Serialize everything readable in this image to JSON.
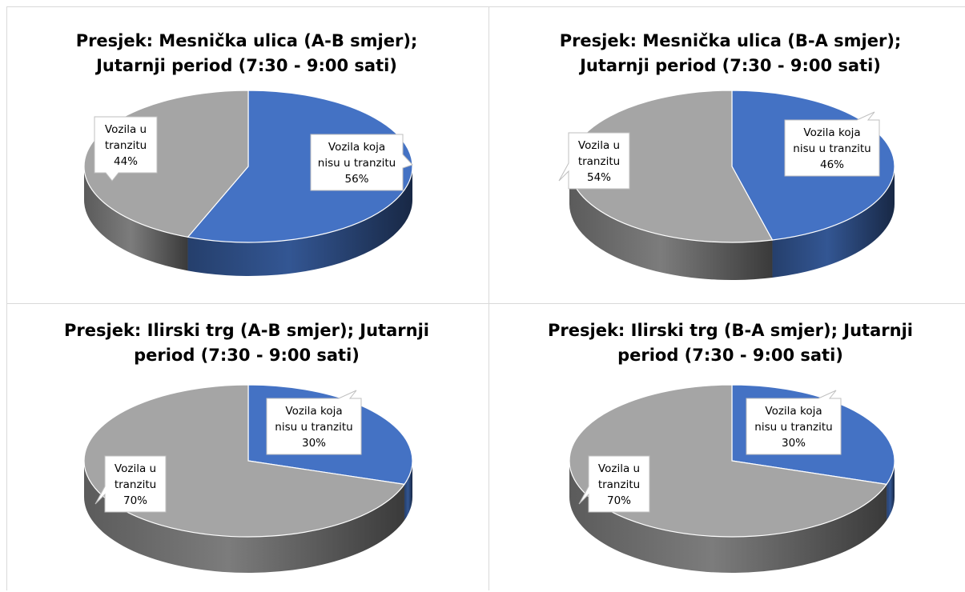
{
  "colors": {
    "blue": "#4472C4",
    "gray": "#A5A5A5"
  },
  "chart_data": [
    {
      "type": "pie",
      "title": "Presjek: Mesnička ulica (A-B smjer); Jutarnji period (7:30 - 9:00 sati)",
      "slices": [
        {
          "label": "Vozila koja nisu u tranzitu",
          "value": 56,
          "display": "56%",
          "color": "#4472C4"
        },
        {
          "label": "Vozila u tranzitu",
          "value": 44,
          "display": "44%",
          "color": "#A5A5A5"
        }
      ]
    },
    {
      "type": "pie",
      "title": "Presjek: Mesnička ulica (B-A smjer); Jutarnji period (7:30 - 9:00 sati)",
      "slices": [
        {
          "label": "Vozila koja nisu u tranzitu",
          "value": 46,
          "display": "46%",
          "color": "#4472C4"
        },
        {
          "label": "Vozila u tranzitu",
          "value": 54,
          "display": "54%",
          "color": "#A5A5A5"
        }
      ]
    },
    {
      "type": "pie",
      "title": "Presjek: Ilirski trg (A-B smjer); Jutarnji period (7:30 - 9:00 sati)",
      "slices": [
        {
          "label": "Vozila koja nisu u tranzitu",
          "value": 30,
          "display": "30%",
          "color": "#4472C4"
        },
        {
          "label": "Vozila u tranzitu",
          "value": 70,
          "display": "70%",
          "color": "#A5A5A5"
        }
      ]
    },
    {
      "type": "pie",
      "title": "Presjek: Ilirski trg (B-A smjer); Jutarnji period (7:30 - 9:00 sati)",
      "slices": [
        {
          "label": "Vozila koja nisu u tranzitu",
          "value": 30,
          "display": "30%",
          "color": "#4472C4"
        },
        {
          "label": "Vozila u tranzitu",
          "value": 70,
          "display": "70%",
          "color": "#A5A5A5"
        }
      ]
    }
  ]
}
